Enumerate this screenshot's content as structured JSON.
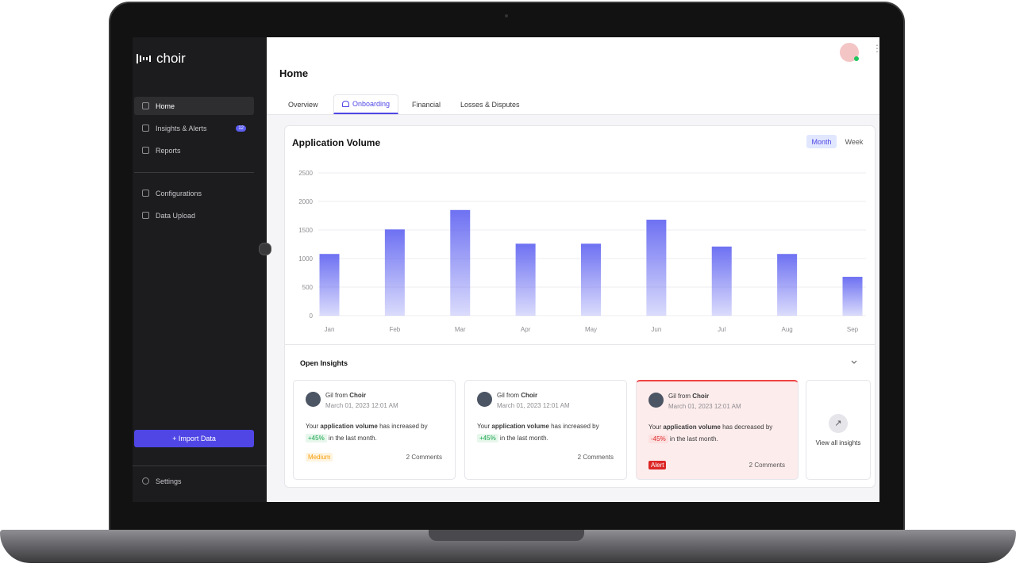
{
  "sidebar": {
    "brand": "choir",
    "nav": [
      {
        "label": "Home"
      },
      {
        "label": "Insights & Alerts",
        "badge": 12
      },
      {
        "label": "Reports"
      }
    ],
    "config_nav": [
      {
        "label": "Configurations"
      },
      {
        "label": "Data Upload"
      }
    ],
    "button": "+ Import Data",
    "settings": "Settings"
  },
  "header": {
    "title": "Home",
    "tabs": [
      "Overview",
      "Onboarding",
      "Financial",
      "Losses & Disputes"
    ]
  },
  "chart_data": {
    "type": "bar",
    "title": "Application Volume",
    "toggle": [
      "Month",
      "Week"
    ],
    "categories": [
      "Jan",
      "Feb",
      "Mar",
      "Apr",
      "May",
      "Jun",
      "Jul",
      "Aug",
      "Sep"
    ],
    "values": [
      1080,
      1510,
      1850,
      1260,
      1260,
      1680,
      1210,
      1080,
      680
    ],
    "color": "#6e71f2",
    "ylim": [
      0,
      2500
    ],
    "yticks": [
      0,
      500,
      1000,
      1500,
      2000,
      2500
    ],
    "grid": true
  },
  "insights": {
    "title": "Open Insights",
    "view_all": "View all insights",
    "cards": [
      {
        "author": "Gil from",
        "org": "Choir",
        "date": "March 01, 2023 12:01 AM",
        "text_before": "Your",
        "text_bold": "application volume",
        "text_after": "has increased by",
        "change": "+45%",
        "change_after": "in the last month.",
        "tag": "Medium",
        "comments": "2 Comments"
      },
      {
        "author": "Gil from",
        "org": "Choir",
        "date": "March 01, 2023 12:01 AM",
        "text_before": "Your",
        "text_bold": "application volume",
        "text_after": "has increased by",
        "change": "+45%",
        "change_after": "in the last month.",
        "comments": "2 Comments"
      },
      {
        "author": "Gil from",
        "org": "Choir",
        "date": "March 01, 2023 12:01 AM",
        "text_before": "Your",
        "text_bold": "application volume",
        "text_after": "has decreased by",
        "change": "-45%",
        "change_after": "in the last month.",
        "tag": "Alert",
        "comments": "2 Comments"
      }
    ]
  }
}
